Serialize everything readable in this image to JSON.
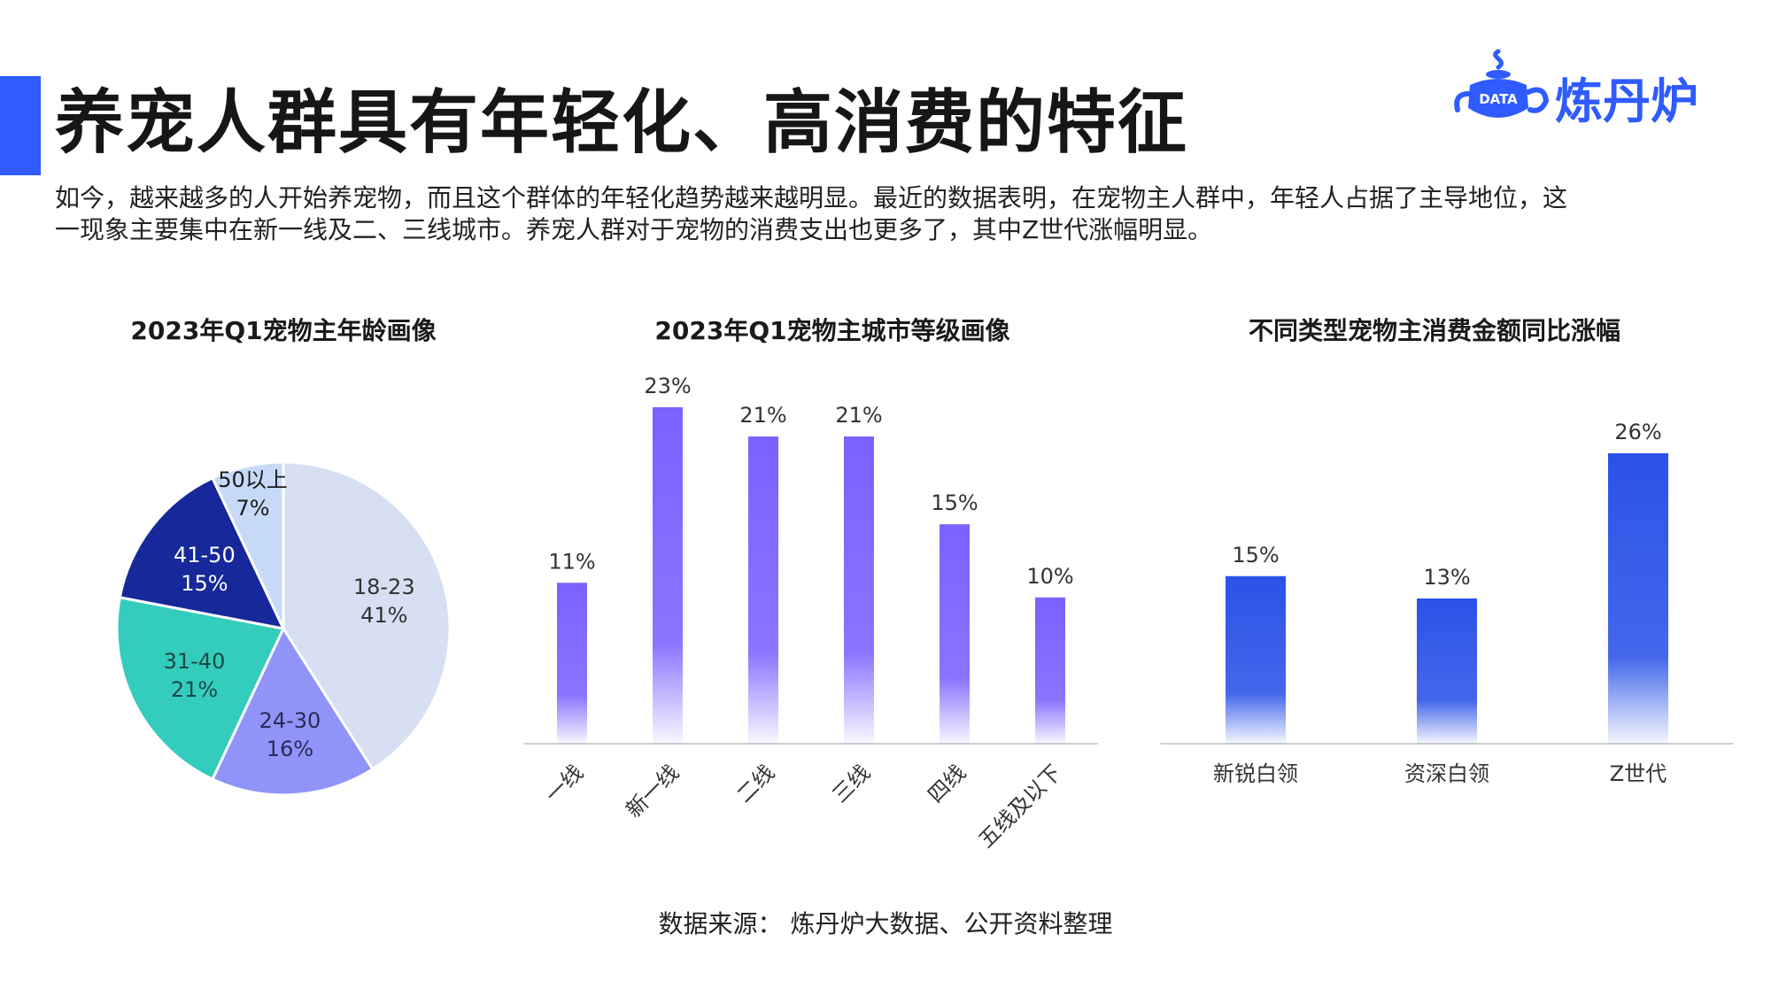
{
  "page": {
    "title": "养宠人群具有年轻化、高消费的特征",
    "intro": "如今，越来越多的人开始养宠物，而且这个群体的年轻化趋势越来越明显。最近的数据表明，在宠物主人群中，年轻人占据了主导地位，这一现象主要集中在新一线及二、三线城市。养宠人群对于宠物的消费支出也更多了，其中Z世代涨幅明显。",
    "source": "数据来源：  炼丹炉大数据、公开资料整理"
  },
  "logo": {
    "badge": "DATA",
    "text": "炼丹炉",
    "icon": "teapot-icon",
    "color": "#2f5bff"
  },
  "colors": {
    "accent": "#2f5bff",
    "pie": [
      "#d6e0f2",
      "#9094f9",
      "#34ccbd",
      "#16289a",
      "#c6daf8"
    ],
    "bar_purple": "#7b61ff",
    "bar_blue": "#2a52e8"
  },
  "chart_data": [
    {
      "type": "pie",
      "title": "2023年Q1宠物主年龄画像",
      "slices": [
        {
          "label": "18-23",
          "value": 41,
          "display": "41%"
        },
        {
          "label": "24-30",
          "value": 16,
          "display": "16%"
        },
        {
          "label": "31-40",
          "value": 21,
          "display": "21%"
        },
        {
          "label": "41-50",
          "value": 15,
          "display": "15%"
        },
        {
          "label": "50以上",
          "value": 7,
          "display": "7%"
        }
      ]
    },
    {
      "type": "bar",
      "title": "2023年Q1宠物主城市等级画像",
      "categories": [
        "一线",
        "新一线",
        "二线",
        "三线",
        "四线",
        "五线及以下"
      ],
      "values": [
        11,
        23,
        21,
        21,
        15,
        10
      ],
      "labels": [
        "11%",
        "23%",
        "21%",
        "21%",
        "15%",
        "10%"
      ],
      "ylim": [
        0,
        23
      ],
      "grid": false
    },
    {
      "type": "bar",
      "title": "不同类型宠物主消费金额同比涨幅",
      "categories": [
        "新锐白领",
        "资深白领",
        "Z世代"
      ],
      "values": [
        15,
        13,
        26
      ],
      "labels": [
        "15%",
        "13%",
        "26%"
      ],
      "ylim": [
        0,
        26
      ],
      "grid": false
    }
  ]
}
